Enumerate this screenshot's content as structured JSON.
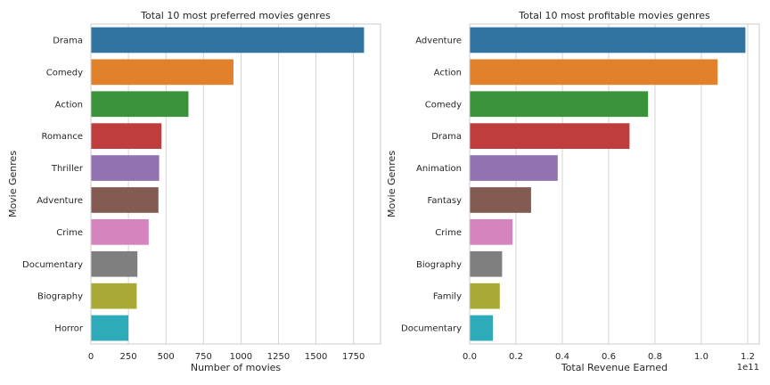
{
  "chart_data": [
    {
      "type": "bar",
      "orientation": "horizontal",
      "title": "Total 10 most preferred movies genres",
      "xlabel": "Number of movies",
      "ylabel": "Movie Genres",
      "categories": [
        "Drama",
        "Comedy",
        "Action",
        "Romance",
        "Thriller",
        "Adventure",
        "Crime",
        "Documentary",
        "Biography",
        "Horror"
      ],
      "values": [
        1820,
        950,
        650,
        470,
        455,
        450,
        385,
        310,
        305,
        250
      ],
      "xlim": [
        0,
        1930
      ],
      "xticks": [
        0,
        250,
        500,
        750,
        1000,
        1250,
        1500,
        1750
      ],
      "xtick_labels": [
        "0",
        "250",
        "500",
        "750",
        "1000",
        "1250",
        "1500",
        "1750"
      ],
      "offset_label": "",
      "grid": "vertical",
      "colors": [
        "#3274a1",
        "#e1812c",
        "#3a923a",
        "#c03d3e",
        "#9372b2",
        "#845b53",
        "#d684bd",
        "#7f7f7f",
        "#a9aa35",
        "#2eabb8"
      ]
    },
    {
      "type": "bar",
      "orientation": "horizontal",
      "title": "Total 10 most profitable movies genres",
      "xlabel": "Total Revenue Earned",
      "ylabel": "Movie Genres",
      "categories": [
        "Adventure",
        "Action",
        "Comedy",
        "Drama",
        "Animation",
        "Fantasy",
        "Crime",
        "Biography",
        "Family",
        "Documentary"
      ],
      "values": [
        119000000000.0,
        107000000000.0,
        77000000000.0,
        69000000000.0,
        38000000000.0,
        26500000000.0,
        18500000000.0,
        14000000000.0,
        13000000000.0,
        10000000000.0
      ],
      "xlim": [
        0,
        125000000000.0
      ],
      "xticks": [
        0,
        20000000000.0,
        40000000000.0,
        60000000000.0,
        80000000000.0,
        100000000000.0,
        120000000000.0
      ],
      "xtick_labels": [
        "0.0",
        "0.2",
        "0.4",
        "0.6",
        "0.8",
        "1.0",
        "1.2"
      ],
      "offset_label": "1e11",
      "grid": "vertical",
      "colors": [
        "#3274a1",
        "#e1812c",
        "#3a923a",
        "#c03d3e",
        "#9372b2",
        "#845b53",
        "#d684bd",
        "#7f7f7f",
        "#a9aa35",
        "#2eabb8"
      ]
    }
  ]
}
